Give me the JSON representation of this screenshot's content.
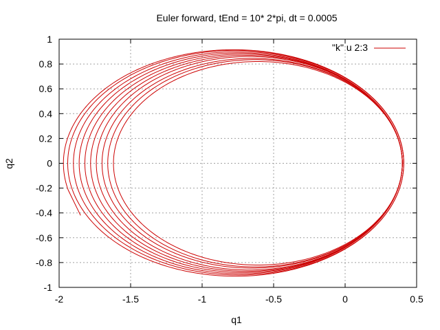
{
  "chart_data": {
    "type": "line",
    "title": "Euler forward, tEnd = 10* 2*pi, dt = 0.0005",
    "xlabel": "q1",
    "ylabel": "q2",
    "xlim": [
      -2,
      0.5
    ],
    "ylim": [
      -1,
      1
    ],
    "x_ticks": [
      {
        "value": -2,
        "label": "-2"
      },
      {
        "value": -1.5,
        "label": "-1.5"
      },
      {
        "value": -1,
        "label": "-1"
      },
      {
        "value": -0.5,
        "label": "-0.5"
      },
      {
        "value": 0,
        "label": "0"
      },
      {
        "value": 0.5,
        "label": "0.5"
      }
    ],
    "y_ticks": [
      {
        "value": -1,
        "label": "-1"
      },
      {
        "value": -0.8,
        "label": "-0.8"
      },
      {
        "value": -0.6,
        "label": "-0.6"
      },
      {
        "value": -0.4,
        "label": "-0.4"
      },
      {
        "value": -0.2,
        "label": "-0.2"
      },
      {
        "value": 0,
        "label": "0"
      },
      {
        "value": 0.2,
        "label": "0.2"
      },
      {
        "value": 0.4,
        "label": "0.4"
      },
      {
        "value": 0.6,
        "label": "0.6"
      },
      {
        "value": 0.8,
        "label": "0.8"
      },
      {
        "value": 1,
        "label": "1"
      }
    ],
    "grid": true,
    "legend_position": "top-right",
    "series": [
      {
        "name": "\"k\" u 2:3",
        "color": "#cc0000",
        "orbits": [
          {
            "q1_min": -1.62,
            "q1_max": 0.4,
            "q2_amp": 0.82
          },
          {
            "q1_min": -1.66,
            "q1_max": 0.4,
            "q2_amp": 0.835
          },
          {
            "q1_min": -1.7,
            "q1_max": 0.4,
            "q2_amp": 0.845
          },
          {
            "q1_min": -1.74,
            "q1_max": 0.4,
            "q2_amp": 0.86
          },
          {
            "q1_min": -1.78,
            "q1_max": 0.4,
            "q2_amp": 0.87
          },
          {
            "q1_min": -1.82,
            "q1_max": 0.4,
            "q2_amp": 0.88
          },
          {
            "q1_min": -1.86,
            "q1_max": 0.4,
            "q2_amp": 0.89
          },
          {
            "q1_min": -1.9,
            "q1_max": 0.41,
            "q2_amp": 0.9
          },
          {
            "q1_min": -1.94,
            "q1_max": 0.41,
            "q2_amp": 0.91
          },
          {
            "q1_min": -1.97,
            "q1_max": 0.41,
            "q2_amp": 0.915
          }
        ],
        "start_point": [
          -1.85,
          -0.42
        ]
      }
    ]
  }
}
